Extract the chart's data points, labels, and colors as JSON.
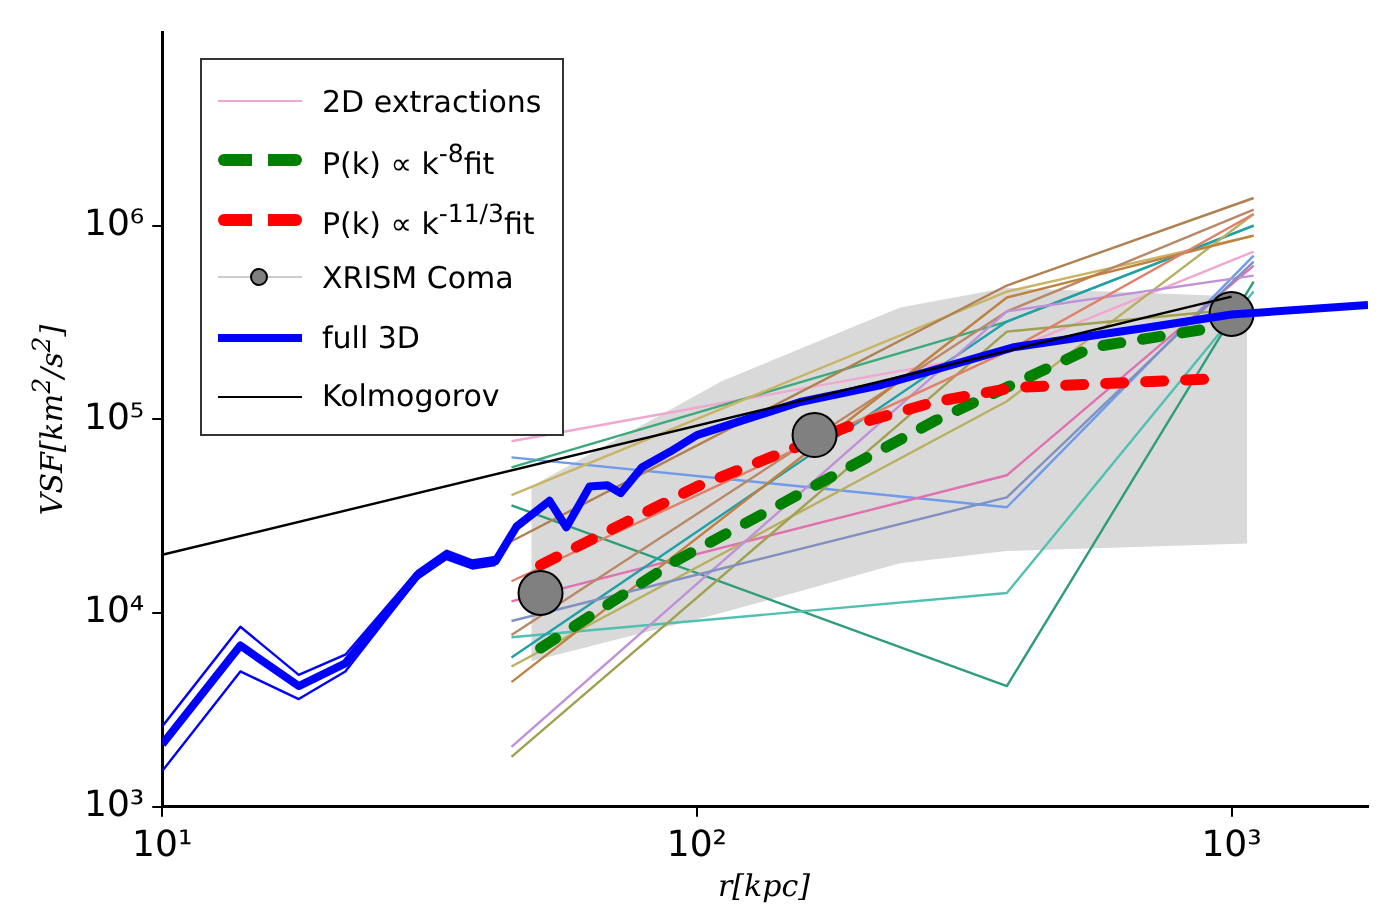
{
  "chart_data": {
    "type": "line",
    "xlabel": "r[kpc]",
    "ylabel": "VSF[km$^{2}$/s$^{2}$]",
    "log": "xy",
    "grid": false,
    "legend": "top left",
    "xlim": [
      10,
      1800
    ],
    "xticks": [
      {
        "value": 10,
        "label": "10¹"
      },
      {
        "value": 100,
        "label": "10²"
      },
      {
        "value": 1000,
        "label": "10³"
      }
    ],
    "ylim": [
      1000,
      10000000
    ],
    "yticks": [
      {
        "value": 1000,
        "label": "10³"
      },
      {
        "value": 10000,
        "label": "10⁴"
      },
      {
        "value": 100000,
        "label": "10⁵"
      },
      {
        "value": 1000000,
        "label": "10⁶"
      }
    ],
    "series": [
      {
        "type": "area",
        "color": "#d9d9d9",
        "x": [
          49,
          111,
          240,
          380,
          1070
        ],
        "values": [
          null,
          null,
          null,
          null,
          null
        ],
        "lower": [
          5650,
          10000,
          18100,
          20900,
          22900
        ],
        "upper": [
          45000,
          157000,
          378000,
          478000,
          430000
        ]
      },
      {
        "name": "2D extractions",
        "color": "#f0a8d0",
        "x": [
          45,
          380,
          1100
        ],
        "values": [
          77100,
          224000,
          735000
        ]
      },
      {
        "color": "#6f9be8",
        "x": [
          45,
          380,
          1100
        ],
        "values": [
          63700,
          35200,
          700000
        ]
      },
      {
        "color": "#3caa7a",
        "x": [
          45,
          380,
          1100
        ],
        "values": [
          56600,
          320000,
          1000000
        ]
      },
      {
        "color": "#c8b464",
        "x": [
          45,
          380,
          1100
        ],
        "values": [
          40600,
          457000,
          888000
        ]
      },
      {
        "color": "#2e9e7a",
        "x": [
          45,
          380,
          1100
        ],
        "values": [
          36000,
          4200,
          514000
        ]
      },
      {
        "color": "#b08050",
        "x": [
          45,
          380,
          1100
        ],
        "values": [
          23500,
          491000,
          1390000
        ]
      },
      {
        "color": "#e070b0",
        "x": [
          45,
          380,
          1100
        ],
        "values": [
          11500,
          51500,
          622000
        ]
      },
      {
        "color": "#b88868",
        "x": [
          45,
          380,
          1100
        ],
        "values": [
          7700,
          361000,
          1210000
        ]
      },
      {
        "color": "#50c0b0",
        "x": [
          45,
          380,
          1100
        ],
        "values": [
          7500,
          12700,
          457000
        ]
      },
      {
        "color": "#20a0a8",
        "x": [
          45,
          380,
          1100
        ],
        "values": [
          5900,
          320000,
          1000000
        ]
      },
      {
        "color": "#b8b060",
        "x": [
          45,
          380,
          1100
        ],
        "values": [
          5300,
          124000,
          1150000
        ]
      },
      {
        "color": "#c08040",
        "x": [
          45,
          380,
          1100
        ],
        "values": [
          4400,
          426000,
          888000
        ]
      },
      {
        "color": "#c090d8",
        "x": [
          45,
          380,
          1100
        ],
        "values": [
          2040,
          361000,
          552000
        ]
      },
      {
        "color": "#a0a050",
        "x": [
          45,
          380,
          1100
        ],
        "values": [
          1810,
          284000,
          378000
        ]
      },
      {
        "color": "#8090c0",
        "x": [
          45,
          380,
          1100
        ],
        "values": [
          9100,
          39600,
          652000
        ]
      },
      {
        "color": "#e08068",
        "x": [
          45,
          380,
          1100
        ],
        "values": [
          14600,
          224000,
          1150000
        ]
      },
      {
        "name": "P(k) ∝ k$^{-8}$fit",
        "color": "#008000",
        "line_style": "dashed",
        "x": [
          51,
          91,
          278,
          550,
          926
        ],
        "values": [
          6600,
          18500,
          98000,
          236000,
          297000
        ]
      },
      {
        "name": "P(k) ∝ k$^{-11/3}$fit",
        "color": "#ff0000",
        "line_style": "dashed",
        "x": [
          51,
          100,
          190,
          278,
          392,
          926
        ],
        "values": [
          17700,
          45000,
          91000,
          123000,
          146000,
          162000
        ]
      },
      {
        "name": "XRISM Coma",
        "type": "scatter",
        "marker": "circle",
        "color": "#808080",
        "x": [
          51,
          166,
          1000
        ],
        "values": [
          12700,
          83000,
          350000
        ]
      },
      {
        "name": "full 3D",
        "color": "#0000ff",
        "x": [
          10,
          14,
          18,
          22,
          30,
          34,
          38,
          42,
          46,
          53,
          57,
          63,
          68,
          72,
          79,
          89,
          100,
          156,
          220,
          392,
          692,
          1000,
          1800
        ],
        "values": [
          2100,
          6800,
          4200,
          5500,
          15700,
          19900,
          17800,
          18500,
          28000,
          38000,
          27700,
          45000,
          45700,
          41600,
          56700,
          68000,
          83000,
          123000,
          150000,
          236000,
          297000,
          348000,
          390000
        ]
      },
      {
        "color": "#0000ff",
        "x": [
          10,
          14,
          18,
          22,
          30,
          34,
          38,
          42
        ],
        "values": [
          1530,
          5000,
          3600,
          5000,
          15000,
          19000,
          17000,
          17700
        ]
      },
      {
        "color": "#0000ff",
        "x": [
          10,
          14,
          18,
          22,
          30,
          34,
          38,
          42
        ],
        "values": [
          2600,
          8500,
          4800,
          6100,
          16500,
          21000,
          18700,
          19500
        ]
      },
      {
        "name": "Kolmogorov",
        "color": "#000000",
        "x": [
          10,
          1000
        ],
        "values": [
          20000,
          430000
        ]
      }
    ]
  }
}
